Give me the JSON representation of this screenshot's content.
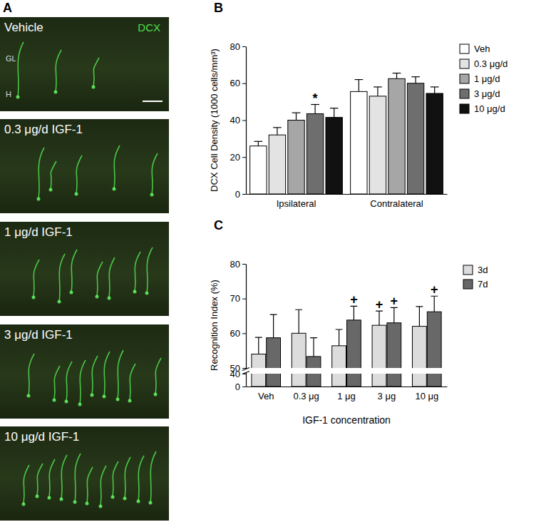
{
  "image_panel": {
    "label": "A",
    "stain": "DCX",
    "region_labels": [
      "GL",
      "H"
    ],
    "images": [
      "Vehicle",
      "0.3 μg/d IGF-1",
      "1 μg/d IGF-1",
      "3 μg/d IGF-1",
      "10 μg/d IGF-1"
    ]
  },
  "chart_data": [
    {
      "type": "bar",
      "title": "B",
      "y_label": "DCX Cell Density (1000 cells/mm³)",
      "categories": [
        "Ipsilateral",
        "Contralateral"
      ],
      "series": [
        {
          "name": "Veh",
          "color": "#ffffff",
          "values": [
            26,
            55.5
          ],
          "errors": [
            2.5,
            6.5
          ]
        },
        {
          "name": "0.3 μg/d",
          "color": "#e3e3e3",
          "values": [
            32,
            53
          ],
          "errors": [
            4,
            5
          ]
        },
        {
          "name": "1 μg/d",
          "color": "#a6a6a6",
          "values": [
            40,
            62.5
          ],
          "errors": [
            4,
            3
          ]
        },
        {
          "name": "3 μg/d",
          "color": "#6e6e6e",
          "values": [
            43.5,
            60
          ],
          "errors": [
            5,
            3.5
          ]
        },
        {
          "name": "10 μg/d",
          "color": "#111111",
          "values": [
            41.5,
            54.5
          ],
          "errors": [
            5,
            3.5
          ]
        }
      ],
      "ylim": [
        0,
        80
      ],
      "yticks": [
        0,
        20,
        40,
        60,
        80
      ],
      "legend": "right",
      "annotations": [
        {
          "text": "*",
          "series": "3 μg/d",
          "category": "Ipsilateral"
        }
      ]
    },
    {
      "type": "bar",
      "title": "C",
      "x_label": "IGF-1 concentration",
      "y_label": "Recognition Index (%)",
      "categories": [
        "Veh",
        "0.3 μg",
        "1 μg",
        "3 μg",
        "10 μg"
      ],
      "series": [
        {
          "name": "3d",
          "color": "#dcdcdc",
          "values": [
            54,
            60,
            56.4,
            62.3,
            62
          ],
          "errors": [
            4.8,
            6.8,
            4.7,
            4.1,
            5.7
          ]
        },
        {
          "name": "7d",
          "color": "#686868",
          "values": [
            58.7,
            53.3,
            63.8,
            63,
            66.2
          ],
          "errors": [
            6.7,
            5.4,
            4,
            4.4,
            4.5
          ]
        }
      ],
      "ylim": [
        0,
        80
      ],
      "yticks": [
        0,
        40,
        50,
        60,
        70,
        80
      ],
      "y_break": [
        40,
        50
      ],
      "legend": "right",
      "annotations": [
        {
          "text": "+",
          "series": "7d",
          "category": "1 μg"
        },
        {
          "text": "+",
          "series": "3d",
          "category": "3 μg"
        },
        {
          "text": "+",
          "series": "7d",
          "category": "3 μg"
        },
        {
          "text": "+",
          "series": "7d",
          "category": "10 μg"
        }
      ]
    }
  ]
}
